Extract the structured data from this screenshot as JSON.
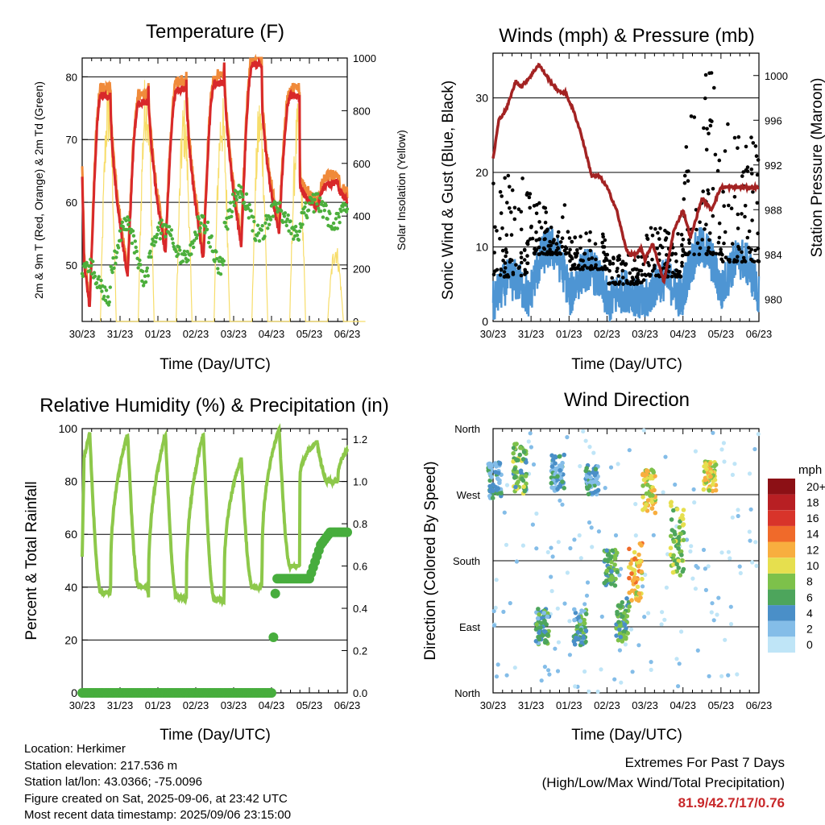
{
  "panels": {
    "temperature": {
      "title": "Temperature (F)",
      "ylabel_left": "2m & 9m T (Red, Orange) & 2m Td (Green)",
      "ylabel_right": "Solar Insolation (Yellow)",
      "xlabel": "Time (Day/UTC)"
    },
    "winds": {
      "title": "Winds (mph) & Pressure (mb)",
      "ylabel_left": "Sonic Wind & Gust (Blue, Black)",
      "ylabel_right": "Station Pressure (Maroon)",
      "xlabel": "Time (Day/UTC)"
    },
    "humidity": {
      "title": "Relative Humidity (%) & Precipitation (in)",
      "ylabel_left": "Percent & Total Rainfall",
      "xlabel": "Time (Day/UTC)"
    },
    "direction": {
      "title": "Wind Direction",
      "ylabel_left": "Direction (Colored By Speed)",
      "xlabel": "Time (Day/UTC)",
      "legend_title": "mph"
    }
  },
  "info": {
    "location": "Location: Herkimer",
    "elevation": "Station elevation: 217.536 m",
    "latlon": "Station lat/lon: 43.0366; -75.0096",
    "created": "Figure created on Sat, 2025-09-06, at 23:42 UTC",
    "recent": "Most recent data timestamp: 2025/09/06 23:15:00"
  },
  "extremes": {
    "line1": "Extremes For Past 7 Days",
    "line2": "(High/Low/Max Wind/Total Precipitation)",
    "values": "81.9/42.7/17/0.76"
  },
  "colors": {
    "temp2m": "#d8282a",
    "temp9m": "#f08a3a",
    "dewpoint": "#4caf3c",
    "solar": "#f7dd6a",
    "gust": "#000000",
    "wind": "#4e95d3",
    "pressure": "#a32323",
    "rh": "#8dc84a",
    "precip": "#47ad3d"
  },
  "chart_data": [
    {
      "type": "line",
      "name": "temperature",
      "title": "Temperature (F)",
      "xlabel": "Time (Day/UTC)",
      "ylabel": "2m & 9m T (Red, Orange) & 2m Td (Green)",
      "y2label": "Solar Insolation (Yellow)",
      "x_ticks": [
        "30/23",
        "31/23",
        "01/23",
        "02/23",
        "03/23",
        "04/23",
        "05/23",
        "06/23"
      ],
      "ylim": [
        41,
        83
      ],
      "yticks": [
        50,
        60,
        70,
        80
      ],
      "y2lim": [
        0,
        1000
      ],
      "y2ticks": [
        0,
        200,
        400,
        600,
        800,
        1000
      ],
      "gridlines": [
        50,
        60,
        70,
        80
      ],
      "daily": {
        "max_2m": [
          77,
          76,
          78,
          79,
          82,
          77,
          63
        ],
        "min_2m": [
          43,
          48,
          52,
          51,
          53,
          55,
          59
        ],
        "dew_low": [
          45,
          48,
          51,
          50,
          55,
          55,
          57
        ],
        "dew_high": [
          50,
          57,
          56,
          57,
          62,
          59,
          60
        ],
        "solar_peak": [
          930,
          980,
          860,
          880,
          870,
          830,
          310
        ]
      },
      "first_value_2m": 64
    },
    {
      "type": "line",
      "name": "winds",
      "title": "Winds (mph) & Pressure (mb)",
      "xlabel": "Time (Day/UTC)",
      "ylabel": "Sonic Wind & Gust (Blue, Black)",
      "y2label": "Station Pressure (Maroon)",
      "x_ticks": [
        "30/23",
        "31/23",
        "01/23",
        "02/23",
        "03/23",
        "04/23",
        "05/23",
        "06/23"
      ],
      "ylim": [
        0,
        36
      ],
      "yticks": [
        0,
        10,
        20,
        30
      ],
      "y2lim": [
        978,
        1002
      ],
      "y2ticks": [
        980,
        984,
        988,
        992,
        996,
        1000
      ],
      "gridlines": [
        10,
        20,
        30
      ],
      "pressure": {
        "x": [
          0,
          0.15,
          0.35,
          0.6,
          0.75,
          1.0,
          1.2,
          1.5,
          1.75,
          1.9,
          2.1,
          2.3,
          2.6,
          2.8,
          3.0,
          3.25,
          3.5,
          3.6,
          3.75,
          3.9,
          4.0,
          4.2,
          4.5,
          4.75,
          5.0,
          5.2,
          5.5,
          5.75,
          6.0
        ],
        "y": [
          992.5,
          996,
          997,
          999.5,
          999,
          1000,
          1001,
          999.5,
          998.5,
          998.5,
          997,
          995,
          991,
          991,
          990,
          988,
          984.5,
          984,
          984,
          984.5,
          983.5,
          985,
          981.5,
          986,
          988,
          985.5,
          989,
          988,
          990
        ]
      },
      "wind_daily_mean": [
        4,
        7,
        5,
        3,
        4,
        7,
        6
      ],
      "gust_daily_max": [
        20,
        16,
        12,
        9,
        13,
        33.5,
        26.5
      ]
    },
    {
      "type": "line",
      "name": "humidity_precip",
      "title": "Relative Humidity (%) & Precipitation (in)",
      "xlabel": "Time (Day/UTC)",
      "ylabel": "Percent & Total Rainfall",
      "x_ticks": [
        "30/23",
        "31/23",
        "01/23",
        "02/23",
        "03/23",
        "04/23",
        "05/23",
        "06/23"
      ],
      "ylim": [
        0,
        100
      ],
      "yticks": [
        0,
        20,
        40,
        60,
        80,
        100
      ],
      "y2lim": [
        0,
        1.25
      ],
      "y2ticks": [
        0.0,
        0.2,
        0.4,
        0.6,
        0.8,
        1.0,
        1.2
      ],
      "gridlines": [
        20,
        40,
        60,
        80,
        100
      ],
      "rh_daily_max": [
        98,
        98,
        98,
        98,
        89,
        100,
        95
      ],
      "rh_daily_min": [
        38,
        40,
        36,
        35,
        40,
        48,
        80
      ],
      "precip_total": {
        "x": [
          0,
          5.0,
          5.01,
          5.08,
          5.12,
          5.45,
          6.0,
          6.3,
          6.55,
          6.95
        ],
        "y": [
          0,
          0,
          0.08,
          0.4,
          0.54,
          0.54,
          0.54,
          0.7,
          0.76,
          0.76
        ]
      }
    },
    {
      "type": "scatter",
      "name": "wind_direction",
      "title": "Wind Direction",
      "xlabel": "Time (Day/UTC)",
      "ylabel": "Direction (Colored By Speed)",
      "x_ticks": [
        "30/23",
        "31/23",
        "01/23",
        "02/23",
        "03/23",
        "04/23",
        "05/23",
        "06/23"
      ],
      "y_ticks": [
        "North",
        "East",
        "South",
        "West",
        "North"
      ],
      "gridlines": [
        "East",
        "South",
        "West"
      ],
      "colorbar": {
        "title": "mph",
        "labels": [
          "0",
          "2",
          "4",
          "6",
          "8",
          "10",
          "12",
          "14",
          "16",
          "18",
          "20+"
        ],
        "colors": [
          "#bfe5f7",
          "#84bde8",
          "#4a8fc8",
          "#4da55c",
          "#7dc14a",
          "#e6df4e",
          "#f8ae3f",
          "#f06a2a",
          "#d8342a",
          "#b81f23",
          "#8c1015"
        ]
      },
      "clusters": [
        {
          "day": 0.05,
          "dir": 290,
          "spread": 25,
          "speed": 4
        },
        {
          "day": 0.7,
          "dir": 305,
          "spread": 35,
          "speed": 7
        },
        {
          "day": 1.3,
          "dir": 90,
          "spread": 25,
          "speed": 5
        },
        {
          "day": 1.7,
          "dir": 300,
          "spread": 25,
          "speed": 4
        },
        {
          "day": 2.3,
          "dir": 90,
          "spread": 25,
          "speed": 5
        },
        {
          "day": 2.6,
          "dir": 290,
          "spread": 20,
          "speed": 4
        },
        {
          "day": 3.1,
          "dir": 170,
          "spread": 25,
          "speed": 6
        },
        {
          "day": 3.4,
          "dir": 100,
          "spread": 30,
          "speed": 6
        },
        {
          "day": 3.75,
          "dir": 160,
          "spread": 45,
          "speed": 11
        },
        {
          "day": 4.1,
          "dir": 275,
          "spread": 30,
          "speed": 10
        },
        {
          "day": 4.85,
          "dir": 210,
          "spread": 50,
          "speed": 8
        },
        {
          "day": 5.7,
          "dir": 295,
          "spread": 20,
          "speed": 10
        }
      ]
    }
  ]
}
